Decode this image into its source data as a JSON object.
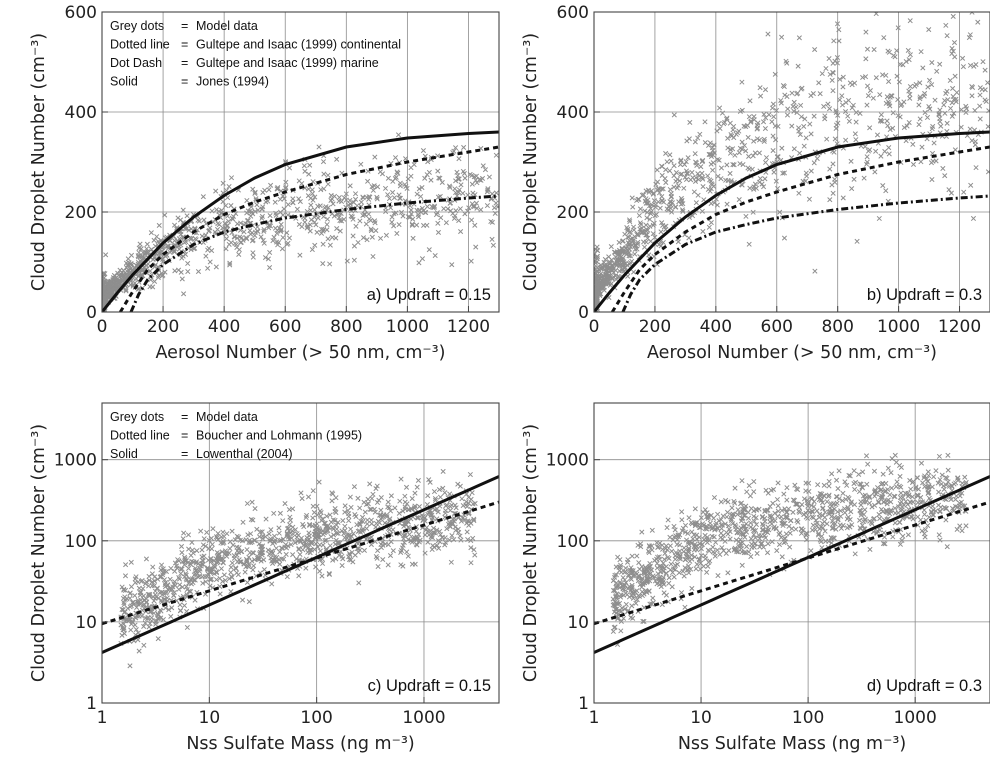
{
  "chart_data": [
    {
      "panel": "a",
      "type": "scatter",
      "xscale": "linear",
      "yscale": "linear",
      "xlim": [
        0,
        1300
      ],
      "ylim": [
        0,
        600
      ],
      "xticks": [
        "0",
        "200",
        "400",
        "600",
        "800",
        "1000",
        "1200"
      ],
      "yticks": [
        "0",
        "200",
        "400",
        "600"
      ],
      "xlabel": "Aerosol Number (> 50 nm, cm⁻³)",
      "ylabel": "Cloud Droplet Number (cm⁻³)",
      "annotation": "a) Updraft = 0.15",
      "grid": true,
      "legend_placement": "top-left",
      "legend": [
        {
          "key": "Grey dots",
          "eq": "=",
          "text": "Model data"
        },
        {
          "key": "Dotted line",
          "eq": "=",
          "text": "Gultepe and Isaac (1999) continental"
        },
        {
          "key": "Dot Dash",
          "eq": "=",
          "text": "Gultepe and Isaac (1999) marine"
        },
        {
          "key": "Solid",
          "eq": "=",
          "text": "Jones (1994)"
        }
      ],
      "series": [
        {
          "name": "Model data",
          "style": "scatter",
          "color": "#8e8e8e",
          "x": [
            5,
            10,
            20,
            50,
            100,
            150,
            200,
            250,
            300,
            400,
            500,
            600,
            800,
            1000,
            1200
          ],
          "y": [
            20,
            35,
            45,
            55,
            80,
            100,
            120,
            140,
            150,
            170,
            185,
            200,
            210,
            220,
            230
          ]
        },
        {
          "name": "Gultepe and Isaac (1999) continental",
          "style": "dotted",
          "x": [
            60,
            100,
            150,
            200,
            300,
            400,
            500,
            600,
            800,
            1000,
            1200,
            1300
          ],
          "y": [
            0,
            40,
            85,
            115,
            160,
            195,
            220,
            240,
            275,
            300,
            320,
            330
          ]
        },
        {
          "name": "Gultepe and Isaac (1999) marine",
          "style": "dotdash",
          "x": [
            95,
            120,
            150,
            200,
            300,
            400,
            500,
            600,
            800,
            1000,
            1200,
            1300
          ],
          "y": [
            0,
            35,
            65,
            95,
            135,
            160,
            175,
            188,
            205,
            218,
            228,
            232
          ]
        },
        {
          "name": "Jones (1994)",
          "style": "solid",
          "x": [
            0,
            50,
            100,
            200,
            300,
            400,
            500,
            600,
            800,
            1000,
            1200,
            1300
          ],
          "y": [
            0,
            38,
            74,
            138,
            190,
            233,
            268,
            295,
            330,
            348,
            357,
            360
          ]
        }
      ]
    },
    {
      "panel": "b",
      "type": "scatter",
      "xscale": "linear",
      "yscale": "linear",
      "xlim": [
        0,
        1300
      ],
      "ylim": [
        0,
        600
      ],
      "xticks": [
        "0",
        "200",
        "400",
        "600",
        "800",
        "1000",
        "1200"
      ],
      "yticks": [
        "0",
        "200",
        "400",
        "600"
      ],
      "xlabel": "Aerosol Number (> 50 nm, cm⁻³)",
      "ylabel": "Cloud Droplet Number (cm⁻³)",
      "annotation": "b) Updraft = 0.3",
      "grid": true,
      "series": [
        {
          "name": "Model data",
          "style": "scatter",
          "color": "#8e8e8e",
          "x": [
            5,
            10,
            20,
            50,
            100,
            150,
            200,
            250,
            300,
            400,
            500,
            600,
            800,
            1000,
            1200
          ],
          "y": [
            30,
            50,
            60,
            75,
            120,
            160,
            200,
            230,
            260,
            300,
            330,
            350,
            380,
            400,
            420
          ]
        },
        {
          "name": "Gultepe and Isaac (1999) continental",
          "style": "dotted",
          "x": [
            60,
            100,
            150,
            200,
            300,
            400,
            500,
            600,
            800,
            1000,
            1200,
            1300
          ],
          "y": [
            0,
            40,
            85,
            115,
            160,
            195,
            220,
            240,
            275,
            300,
            320,
            330
          ]
        },
        {
          "name": "Gultepe and Isaac (1999) marine",
          "style": "dotdash",
          "x": [
            95,
            120,
            150,
            200,
            300,
            400,
            500,
            600,
            800,
            1000,
            1200,
            1300
          ],
          "y": [
            0,
            35,
            65,
            95,
            135,
            160,
            175,
            188,
            205,
            218,
            228,
            232
          ]
        },
        {
          "name": "Jones (1994)",
          "style": "solid",
          "x": [
            0,
            50,
            100,
            200,
            300,
            400,
            500,
            600,
            800,
            1000,
            1200,
            1300
          ],
          "y": [
            0,
            38,
            74,
            138,
            190,
            233,
            268,
            295,
            330,
            348,
            357,
            360
          ]
        }
      ]
    },
    {
      "panel": "c",
      "type": "scatter",
      "xscale": "log",
      "yscale": "log",
      "xlim": [
        1,
        5000
      ],
      "ylim": [
        1,
        5000
      ],
      "xticks": [
        "1",
        "10",
        "100",
        "1000"
      ],
      "yticks": [
        "1",
        "10",
        "100",
        "1000"
      ],
      "xlabel": "Nss Sulfate Mass (ng m⁻³)",
      "ylabel": "Cloud Droplet Number (cm⁻³)",
      "annotation": "c) Updraft = 0.15",
      "grid": true,
      "legend_placement": "top-left",
      "legend": [
        {
          "key": "Grey dots",
          "eq": "=",
          "text": "Model data"
        },
        {
          "key": "Dotted line",
          "eq": "=",
          "text": "Boucher and Lohmann (1995)"
        },
        {
          "key": "Solid",
          "eq": "=",
          "text": "Lowenthal (2004)"
        }
      ],
      "series": [
        {
          "name": "Model data",
          "style": "scatter",
          "color": "#8e8e8e",
          "x": [
            1.5,
            2,
            3,
            5,
            10,
            20,
            50,
            100,
            200,
            500,
            1000,
            2000
          ],
          "y": [
            12,
            15,
            20,
            30,
            50,
            70,
            90,
            110,
            130,
            150,
            170,
            200
          ]
        },
        {
          "name": "Boucher and Lohmann (1995)",
          "style": "dotted",
          "x": [
            1,
            5000
          ],
          "y": [
            9.5,
            300
          ]
        },
        {
          "name": "Lowenthal (2004)",
          "style": "solid",
          "x": [
            1,
            5000
          ],
          "y": [
            4.2,
            620
          ]
        }
      ]
    },
    {
      "panel": "d",
      "type": "scatter",
      "xscale": "log",
      "yscale": "log",
      "xlim": [
        1,
        5000
      ],
      "ylim": [
        1,
        5000
      ],
      "xticks": [
        "1",
        "10",
        "100",
        "1000"
      ],
      "yticks": [
        "1",
        "10",
        "100",
        "1000"
      ],
      "xlabel": "Nss Sulfate Mass (ng m⁻³)",
      "ylabel": "Cloud Droplet Number (cm⁻³)",
      "annotation": "d) Updraft = 0.3",
      "grid": true,
      "series": [
        {
          "name": "Model data",
          "style": "scatter",
          "color": "#8e8e8e",
          "x": [
            1.5,
            2,
            3,
            5,
            10,
            20,
            50,
            100,
            200,
            500,
            1000,
            2000
          ],
          "y": [
            18,
            25,
            40,
            60,
            100,
            140,
            170,
            200,
            230,
            270,
            300,
            350
          ]
        },
        {
          "name": "Boucher and Lohmann (1995)",
          "style": "dotted",
          "x": [
            1,
            5000
          ],
          "y": [
            9.5,
            300
          ]
        },
        {
          "name": "Lowenthal (2004)",
          "style": "solid",
          "x": [
            1,
            5000
          ],
          "y": [
            4.2,
            620
          ]
        }
      ]
    }
  ]
}
